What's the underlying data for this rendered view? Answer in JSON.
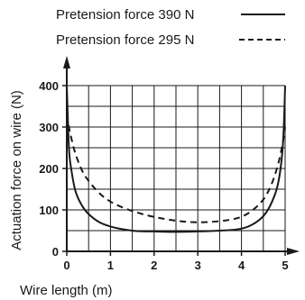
{
  "chart_data": {
    "type": "line",
    "title": "",
    "xlabel": "Wire length (m)",
    "ylabel": "Actuation force on wire (N)",
    "xlim": [
      0,
      5
    ],
    "ylim": [
      0,
      400
    ],
    "x_ticks": [
      "0",
      "1",
      "2",
      "3",
      "4",
      "5"
    ],
    "y_ticks": [
      "0",
      "100",
      "200",
      "300",
      "400"
    ],
    "grid": true,
    "legend_position": "top",
    "series": [
      {
        "name": "Pretension force 390 N",
        "style": "solid",
        "color": "#1a1a1a",
        "x": [
          0,
          0.05,
          0.1,
          0.2,
          0.35,
          0.5,
          0.75,
          1.0,
          1.3,
          1.6,
          2.0,
          2.5,
          3.0,
          3.5,
          3.9,
          4.2,
          4.5,
          4.7,
          4.85,
          4.95,
          5.0
        ],
        "y": [
          400,
          250,
          200,
          145,
          110,
          90,
          70,
          60,
          53,
          49,
          48,
          47,
          48,
          50,
          53,
          62,
          85,
          120,
          170,
          260,
          400
        ]
      },
      {
        "name": "Pretension force 295 N",
        "style": "dashed",
        "color": "#1a1a1a",
        "x": [
          0,
          0.05,
          0.1,
          0.2,
          0.35,
          0.5,
          0.75,
          1.0,
          1.3,
          1.6,
          2.0,
          2.5,
          3.0,
          3.5,
          3.9,
          4.2,
          4.5,
          4.7,
          4.85,
          4.95,
          5.0
        ],
        "y": [
          330,
          300,
          275,
          235,
          195,
          170,
          140,
          120,
          105,
          94,
          83,
          74,
          70,
          73,
          80,
          95,
          125,
          165,
          215,
          265,
          300
        ]
      }
    ]
  }
}
